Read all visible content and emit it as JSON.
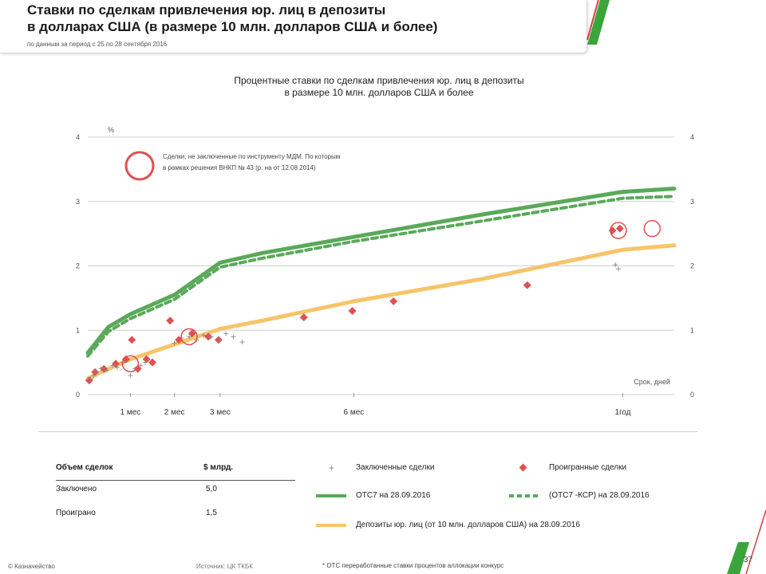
{
  "header": {
    "title_line1": "Ставки по сделкам привлечения юр. лиц в депозиты",
    "title_line2": "в долларах США (в размере 10 млн. долларов США и более)",
    "subtitle": "по данным за период с 25 по 28 сентября 2016"
  },
  "chart_title": {
    "line1": "Процентные ставки по сделкам привлечения юр. лиц в депозиты",
    "line2": "в размере 10 млн. долларов США и более"
  },
  "annotation": {
    "line1": "Сделки, не заключенные по инструменту МДМ. По которым",
    "line2": "в рамках решения ВНКП № 43 (р. на от 12.08.2014)"
  },
  "chart_data": {
    "type": "line",
    "ylabel": "%",
    "xlabel": "Срок, дней",
    "ylim": [
      0,
      4
    ],
    "yticks": [
      "0",
      "1",
      "2",
      "3",
      "4"
    ],
    "xticks": [
      "1 мес",
      "2 мес",
      "3 мес",
      "6 мес",
      "1год"
    ],
    "xtick_days": [
      30,
      60,
      91,
      182,
      365
    ],
    "x_range": [
      1,
      400
    ],
    "grid": true,
    "legend_position": "bottom",
    "series": [
      {
        "name": "ОТС7 на 28.09.2016",
        "style": "solid",
        "color": "#5aa95a",
        "x": [
          1,
          15,
          30,
          60,
          91,
          120,
          182,
          270,
          365,
          400
        ],
        "y": [
          0.65,
          1.05,
          1.25,
          1.55,
          2.05,
          2.2,
          2.45,
          2.8,
          3.15,
          3.2
        ]
      },
      {
        "name": "(ОТС7 -КСР) на 28.09.2016",
        "style": "dashed",
        "color": "#5aa95a",
        "x": [
          1,
          15,
          30,
          60,
          91,
          120,
          182,
          270,
          365,
          400
        ],
        "y": [
          0.6,
          0.98,
          1.18,
          1.48,
          1.98,
          2.12,
          2.38,
          2.7,
          3.05,
          3.08
        ]
      },
      {
        "name": "Депозиты юр. лиц (от 10 млн. долларов США) на 28.09.2016",
        "style": "solid",
        "color": "#f7c46a",
        "x": [
          1,
          15,
          30,
          60,
          91,
          120,
          182,
          270,
          365,
          400
        ],
        "y": [
          0.25,
          0.4,
          0.55,
          0.78,
          1.02,
          1.15,
          1.45,
          1.8,
          2.25,
          2.32
        ]
      }
    ],
    "points_closed": {
      "name": "Заключенные сделки",
      "color": "#888888",
      "x": [
        3,
        5,
        7,
        10,
        14,
        18,
        21,
        25,
        30,
        33,
        37,
        40,
        60,
        65,
        70,
        75,
        80,
        85,
        91,
        95,
        100,
        106,
        360,
        362
      ],
      "y": [
        0.25,
        0.3,
        0.35,
        0.4,
        0.38,
        0.45,
        0.42,
        0.5,
        0.3,
        0.4,
        0.45,
        0.5,
        0.8,
        0.88,
        0.9,
        0.85,
        0.92,
        0.9,
        0.85,
        0.95,
        0.9,
        0.82,
        2.02,
        1.95
      ]
    },
    "points_lost": {
      "name": "Проигранные сделки",
      "color": "#e05050",
      "x": [
        2,
        6,
        12,
        20,
        27,
        31,
        35,
        41,
        45,
        57,
        63,
        72,
        83,
        90,
        148,
        181,
        209,
        300,
        358,
        363
      ],
      "y": [
        0.22,
        0.35,
        0.4,
        0.48,
        0.55,
        0.85,
        0.4,
        0.55,
        0.5,
        1.15,
        0.85,
        0.95,
        0.9,
        0.85,
        1.2,
        1.3,
        1.45,
        1.7,
        2.55,
        2.58
      ]
    },
    "circled": {
      "x": [
        30,
        70,
        362,
        385
      ],
      "y": [
        0.48,
        0.9,
        2.55,
        2.58
      ]
    }
  },
  "volume_table": {
    "header": [
      "Объем сделок",
      "$ млрд."
    ],
    "rows": [
      [
        "Заключено",
        "5,0"
      ],
      [
        "Проиграно",
        "1,5"
      ]
    ]
  },
  "legend": {
    "closed": "Заключенные сделки",
    "lost": "Проигранные сделки",
    "otc": "ОТС7 на 28.09.2016",
    "otc_ksr": "(ОТС7 -КСР) на 28.09.2016",
    "deposits": "Депозиты юр. лиц (от 10 млн. долларов США) на 28.09.2016"
  },
  "footer": {
    "left": "© Казначейство",
    "middle": "Источник: ЦК ТКБК",
    "note": "* ОТС переработанные ставки процентов аллокации конкурс",
    "page": "37"
  },
  "colors": {
    "green": "#5aa95a",
    "orange": "#f7c46a",
    "red": "#e05050",
    "grey": "#888888",
    "stripe_green": "#3aa53a",
    "stripe_red": "#d04040"
  }
}
